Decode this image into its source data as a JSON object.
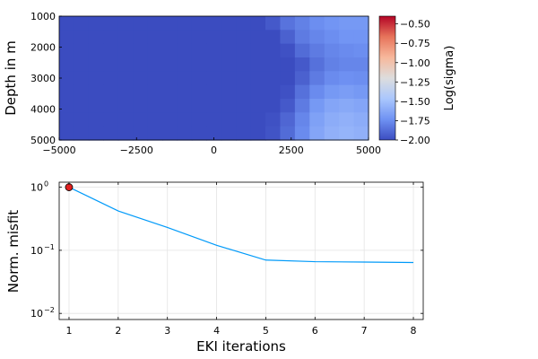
{
  "chart_data": [
    {
      "type": "heatmap",
      "ylabel": "Depth in m",
      "colorbar_label": "Log(sigma)",
      "x_ticks": [
        -5000,
        -2500,
        0,
        2500,
        5000
      ],
      "x_tick_labels": [
        "−5000",
        "−2500",
        "0",
        "2500",
        "5000"
      ],
      "y_ticks": [
        1000,
        2000,
        3000,
        4000,
        5000
      ],
      "y_tick_labels": [
        "1000",
        "2000",
        "3000",
        "4000",
        "5000"
      ],
      "xlim": [
        -5000,
        5000
      ],
      "ylim": [
        1000,
        5000
      ],
      "y_inverted": true,
      "colorbar_ticks": [
        -0.5,
        -0.75,
        -1.0,
        -1.25,
        -1.5,
        -1.75,
        -2.0
      ],
      "colorbar_tick_labels": [
        "−0.50",
        "−0.75",
        "−1.00",
        "−1.25",
        "−1.50",
        "−1.75",
        "−2.00"
      ],
      "clim": [
        -2.0,
        -0.4
      ],
      "colormap": [
        "#3b4cc0",
        "#6f92f3",
        "#aac7fd",
        "#dddddd",
        "#f7b89c",
        "#e7745b",
        "#b40426"
      ],
      "x": [
        -5000,
        -4500,
        -4000,
        -3500,
        -3000,
        -2500,
        -2000,
        -1500,
        -1000,
        -500,
        0,
        500,
        1000,
        1500,
        2000,
        2500,
        3000,
        3500,
        4000,
        4500,
        5000
      ],
      "y": [
        1000,
        1500,
        2000,
        2500,
        3000,
        3500,
        4000,
        4500,
        5000
      ],
      "values": [
        [
          -2.0,
          -2.0,
          -2.0,
          -2.0,
          -2.0,
          -2.0,
          -2.0,
          -2.0,
          -2.0,
          -2.0,
          -2.0,
          -2.0,
          -2.0,
          -2.0,
          -1.95,
          -1.85,
          -1.8,
          -1.75,
          -1.72,
          -1.7,
          -1.7
        ],
        [
          -2.0,
          -2.0,
          -2.0,
          -2.0,
          -2.0,
          -2.0,
          -2.0,
          -2.0,
          -2.0,
          -2.0,
          -2.0,
          -2.0,
          -2.0,
          -2.0,
          -2.0,
          -1.92,
          -1.82,
          -1.78,
          -1.75,
          -1.72,
          -1.72
        ],
        [
          -2.0,
          -2.0,
          -2.0,
          -2.0,
          -2.0,
          -2.0,
          -2.0,
          -2.0,
          -2.0,
          -2.0,
          -2.0,
          -2.0,
          -2.0,
          -2.0,
          -2.0,
          -1.98,
          -1.88,
          -1.82,
          -1.78,
          -1.76,
          -1.75
        ],
        [
          -2.0,
          -2.0,
          -2.0,
          -2.0,
          -2.0,
          -2.0,
          -2.0,
          -2.0,
          -2.0,
          -2.0,
          -2.0,
          -2.0,
          -2.0,
          -2.0,
          -2.0,
          -2.0,
          -1.95,
          -1.86,
          -1.8,
          -1.78,
          -1.78
        ],
        [
          -2.0,
          -2.0,
          -2.0,
          -2.0,
          -2.0,
          -2.0,
          -2.0,
          -2.0,
          -2.0,
          -2.0,
          -2.0,
          -2.0,
          -2.0,
          -2.0,
          -2.0,
          -2.0,
          -1.92,
          -1.82,
          -1.76,
          -1.74,
          -1.75
        ],
        [
          -2.0,
          -2.0,
          -2.0,
          -2.0,
          -2.0,
          -2.0,
          -2.0,
          -2.0,
          -2.0,
          -2.0,
          -2.0,
          -2.0,
          -2.0,
          -2.0,
          -2.0,
          -1.98,
          -1.86,
          -1.76,
          -1.7,
          -1.68,
          -1.7
        ],
        [
          -2.0,
          -2.0,
          -2.0,
          -2.0,
          -2.0,
          -2.0,
          -2.0,
          -2.0,
          -2.0,
          -2.0,
          -2.0,
          -2.0,
          -2.0,
          -2.0,
          -2.0,
          -1.95,
          -1.82,
          -1.7,
          -1.64,
          -1.62,
          -1.64
        ],
        [
          -2.0,
          -2.0,
          -2.0,
          -2.0,
          -2.0,
          -2.0,
          -2.0,
          -2.0,
          -2.0,
          -2.0,
          -2.0,
          -2.0,
          -2.0,
          -2.0,
          -1.98,
          -1.9,
          -1.78,
          -1.66,
          -1.6,
          -1.58,
          -1.6
        ],
        [
          -2.0,
          -2.0,
          -2.0,
          -2.0,
          -2.0,
          -2.0,
          -2.0,
          -2.0,
          -2.0,
          -2.0,
          -2.0,
          -2.0,
          -2.0,
          -2.0,
          -1.97,
          -1.88,
          -1.76,
          -1.64,
          -1.58,
          -1.56,
          -1.58
        ]
      ]
    },
    {
      "type": "line",
      "xlabel": "EKI iterations",
      "ylabel": "Norm. misfit",
      "y_scale": "log",
      "xlim": [
        0.8,
        8.2
      ],
      "ylim": [
        0.008,
        1.2
      ],
      "x_ticks": [
        1,
        2,
        3,
        4,
        5,
        6,
        7,
        8
      ],
      "x_tick_labels": [
        "1",
        "2",
        "3",
        "4",
        "5",
        "6",
        "7",
        "8"
      ],
      "y_ticks": [
        0.01,
        0.1,
        1
      ],
      "y_tick_labels": [
        {
          "base": "10",
          "exp": "−2"
        },
        {
          "base": "10",
          "exp": "−1"
        },
        {
          "base": "10",
          "exp": "0"
        }
      ],
      "grid": true,
      "series": [
        {
          "x": [
            1,
            2,
            3,
            4,
            5,
            6,
            7,
            8
          ],
          "values": [
            1.0,
            0.42,
            0.23,
            0.12,
            0.07,
            0.066,
            0.065,
            0.064
          ],
          "color": "#009af9"
        }
      ],
      "markers": [
        {
          "x": 1,
          "y": 1.0,
          "color": "#e02020"
        }
      ]
    }
  ]
}
